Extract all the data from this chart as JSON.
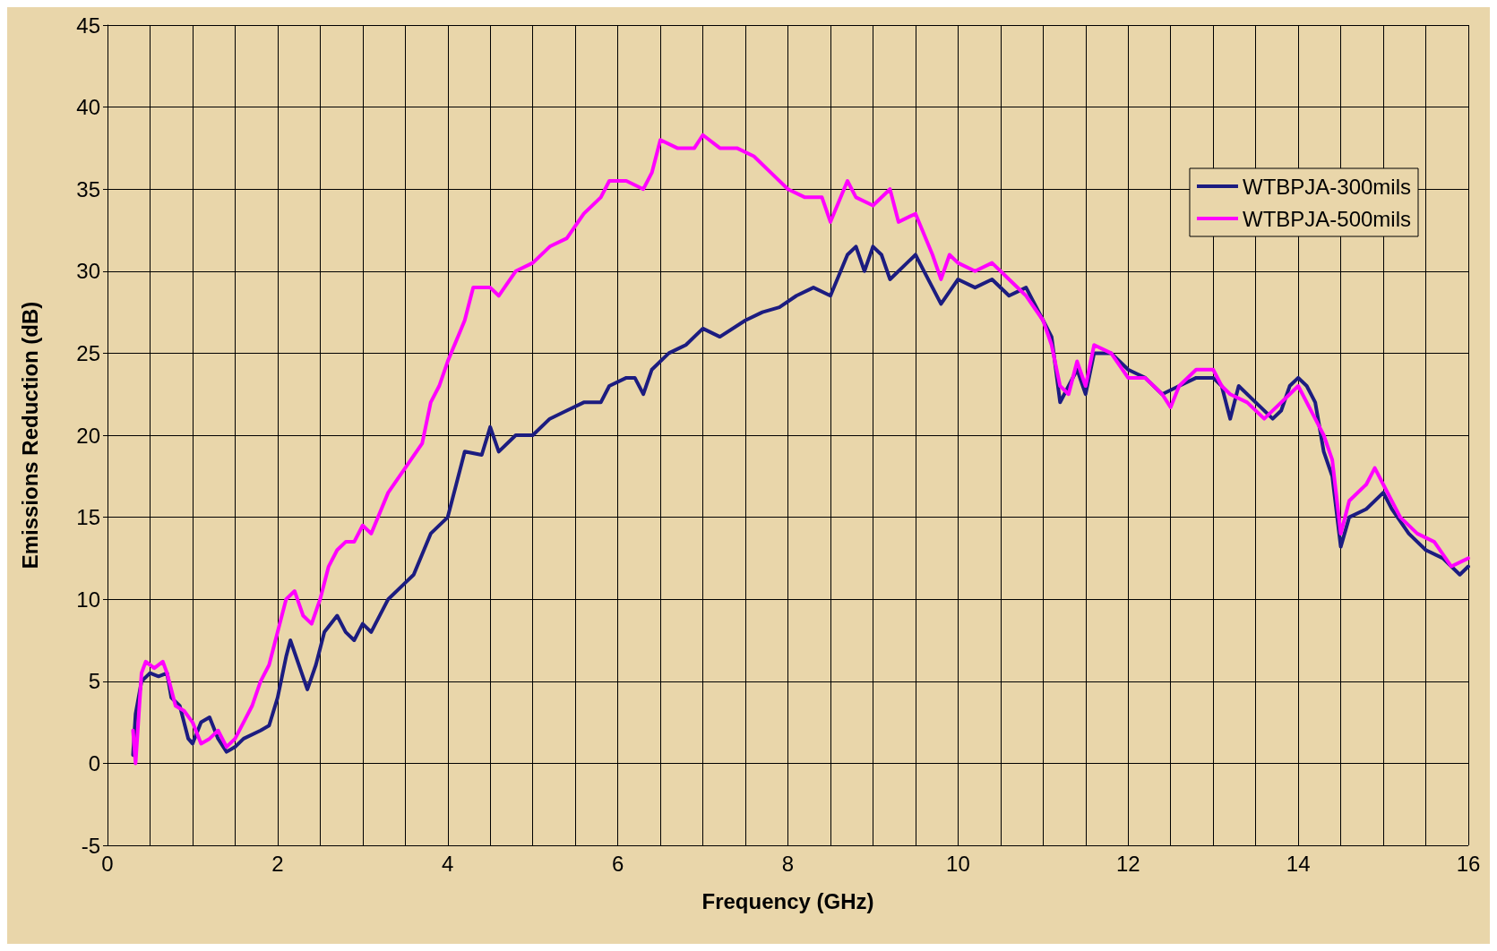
{
  "chart_data": {
    "type": "line",
    "xlabel": "Frequency (GHz)",
    "ylabel": "Emissions Reduction (dB)",
    "xlim": [
      0,
      16
    ],
    "ylim": [
      -5,
      45
    ],
    "xticks": [
      0,
      {
        "value": 0.5,
        "label": null
      },
      2,
      {
        "value": 1,
        "label": null
      },
      {
        "value": 1.5,
        "label": null
      },
      {
        "value": 2.5,
        "label": null
      },
      {
        "value": 3,
        "label": null
      },
      {
        "value": 3.5,
        "label": null
      },
      4,
      {
        "value": 4.5,
        "label": null
      },
      {
        "value": 5,
        "label": null
      },
      {
        "value": 5.5,
        "label": null
      },
      6,
      {
        "value": 6.5,
        "label": null
      },
      {
        "value": 7,
        "label": null
      },
      {
        "value": 7.5,
        "label": null
      },
      8,
      {
        "value": 8.5,
        "label": null
      },
      {
        "value": 9,
        "label": null
      },
      {
        "value": 9.5,
        "label": null
      },
      10,
      {
        "value": 10.5,
        "label": null
      },
      {
        "value": 11,
        "label": null
      },
      {
        "value": 11.5,
        "label": null
      },
      12,
      {
        "value": 12.5,
        "label": null
      },
      {
        "value": 13,
        "label": null
      },
      {
        "value": 13.5,
        "label": null
      },
      14,
      {
        "value": 14.5,
        "label": null
      },
      {
        "value": 15,
        "label": null
      },
      {
        "value": 15.5,
        "label": null
      },
      16
    ],
    "yticks": [
      -5,
      0,
      5,
      10,
      15,
      20,
      25,
      30,
      35,
      40,
      45
    ],
    "grid": true,
    "legend": "top right",
    "marker": "none",
    "line_style": "solid",
    "series": [
      {
        "name": "WTBPJA-300mils",
        "color": "#1c1c80",
        "x": [
          0.3,
          0.33,
          0.4,
          0.5,
          0.6,
          0.7,
          0.75,
          0.85,
          0.95,
          1.0,
          1.1,
          1.2,
          1.3,
          1.4,
          1.5,
          1.6,
          1.8,
          1.9,
          2.0,
          2.1,
          2.15,
          2.25,
          2.35,
          2.45,
          2.55,
          2.7,
          2.8,
          2.9,
          3.0,
          3.1,
          3.3,
          3.5,
          3.6,
          3.8,
          4.0,
          4.1,
          4.2,
          4.4,
          4.5,
          4.6,
          4.8,
          5.0,
          5.2,
          5.4,
          5.6,
          5.8,
          5.9,
          6.1,
          6.2,
          6.3,
          6.4,
          6.6,
          6.8,
          7.0,
          7.2,
          7.5,
          7.7,
          7.9,
          8.1,
          8.3,
          8.5,
          8.7,
          8.8,
          8.9,
          9.0,
          9.1,
          9.2,
          9.4,
          9.5,
          9.6,
          9.7,
          9.8,
          10.0,
          10.2,
          10.4,
          10.6,
          10.8,
          11.0,
          11.1,
          11.2,
          11.3,
          11.4,
          11.5,
          11.6,
          11.8,
          12.0,
          12.2,
          12.4,
          12.6,
          12.8,
          13.0,
          13.1,
          13.2,
          13.3,
          13.5,
          13.7,
          13.8,
          13.9,
          14.0,
          14.1,
          14.2,
          14.3,
          14.4,
          14.5,
          14.6,
          14.8,
          15.0,
          15.1,
          15.3,
          15.5,
          15.7,
          15.9,
          16.0
        ],
        "values": [
          0.5,
          3,
          5,
          5.5,
          5.3,
          5.5,
          4,
          3.5,
          1.5,
          1.2,
          2.5,
          2.8,
          1.5,
          0.7,
          1,
          1.5,
          2,
          2.3,
          4,
          6.5,
          7.5,
          6,
          4.5,
          6,
          8,
          9,
          8,
          7.5,
          8.5,
          8,
          10,
          11,
          11.5,
          14,
          15,
          17,
          19,
          18.8,
          20.5,
          19,
          20,
          20,
          21,
          21.5,
          22,
          22,
          23,
          23.5,
          23.5,
          22.5,
          24,
          25,
          25.5,
          26.5,
          26,
          27,
          27.5,
          27.8,
          28.5,
          29,
          28.5,
          31,
          31.5,
          30,
          31.5,
          31,
          29.5,
          30.5,
          31,
          30,
          29,
          28,
          29.5,
          29,
          29.5,
          28.5,
          29,
          27,
          26,
          22,
          23,
          24,
          22.5,
          25,
          25,
          24,
          23.5,
          22.5,
          23,
          23.5,
          23.5,
          23,
          21,
          23,
          22,
          21,
          21.5,
          23,
          23.5,
          23,
          22,
          19,
          17.5,
          13.2,
          15,
          15.5,
          16.5,
          15.5,
          14,
          13,
          12.5,
          11.5,
          12
        ]
      },
      {
        "name": "WTBPJA-500mils",
        "color": "#ff00ff",
        "x": [
          0.3,
          0.33,
          0.4,
          0.45,
          0.55,
          0.65,
          0.7,
          0.8,
          0.9,
          1.0,
          1.1,
          1.2,
          1.3,
          1.4,
          1.5,
          1.6,
          1.7,
          1.8,
          1.9,
          2.0,
          2.1,
          2.2,
          2.3,
          2.4,
          2.5,
          2.6,
          2.7,
          2.8,
          2.9,
          3.0,
          3.1,
          3.3,
          3.5,
          3.7,
          3.8,
          3.9,
          4.0,
          4.2,
          4.3,
          4.5,
          4.6,
          4.8,
          5.0,
          5.2,
          5.4,
          5.6,
          5.8,
          5.9,
          6.1,
          6.3,
          6.4,
          6.5,
          6.7,
          6.9,
          7.0,
          7.2,
          7.4,
          7.6,
          7.8,
          8.0,
          8.2,
          8.4,
          8.5,
          8.7,
          8.8,
          9.0,
          9.2,
          9.3,
          9.5,
          9.7,
          9.8,
          9.9,
          10.0,
          10.2,
          10.4,
          10.6,
          10.8,
          11.0,
          11.1,
          11.2,
          11.3,
          11.4,
          11.5,
          11.6,
          11.8,
          12.0,
          12.2,
          12.4,
          12.5,
          12.6,
          12.8,
          13.0,
          13.1,
          13.2,
          13.4,
          13.6,
          13.8,
          13.9,
          14.0,
          14.2,
          14.3,
          14.4,
          14.5,
          14.6,
          14.8,
          14.9,
          15.0,
          15.2,
          15.4,
          15.6,
          15.8,
          16.0
        ],
        "values": [
          2,
          0,
          5.5,
          6.2,
          5.8,
          6.2,
          5.5,
          3.5,
          3.2,
          2.5,
          1.2,
          1.5,
          2,
          1,
          1.5,
          2.5,
          3.5,
          5,
          6,
          8,
          10,
          10.5,
          9,
          8.5,
          10,
          12,
          13,
          13.5,
          13.5,
          14.5,
          14,
          16.5,
          18,
          19.5,
          22,
          23,
          24.5,
          27,
          29,
          29,
          28.5,
          30,
          30.5,
          31.5,
          32,
          33.5,
          34.5,
          35.5,
          35.5,
          35,
          36,
          38,
          37.5,
          37.5,
          38.3,
          37.5,
          37.5,
          37,
          36,
          35,
          34.5,
          34.5,
          33,
          35.5,
          34.5,
          34,
          35,
          33,
          33.5,
          31,
          29.5,
          31,
          30.5,
          30,
          30.5,
          29.5,
          28.5,
          27,
          25.5,
          23,
          22.5,
          24.5,
          23,
          25.5,
          25,
          23.5,
          23.5,
          22.5,
          21.7,
          23,
          24,
          24,
          23,
          22.5,
          22,
          21,
          22,
          22.5,
          23,
          21,
          20,
          18.5,
          14,
          16,
          17,
          18,
          17,
          15,
          14,
          13.5,
          12,
          12.5
        ]
      }
    ]
  }
}
